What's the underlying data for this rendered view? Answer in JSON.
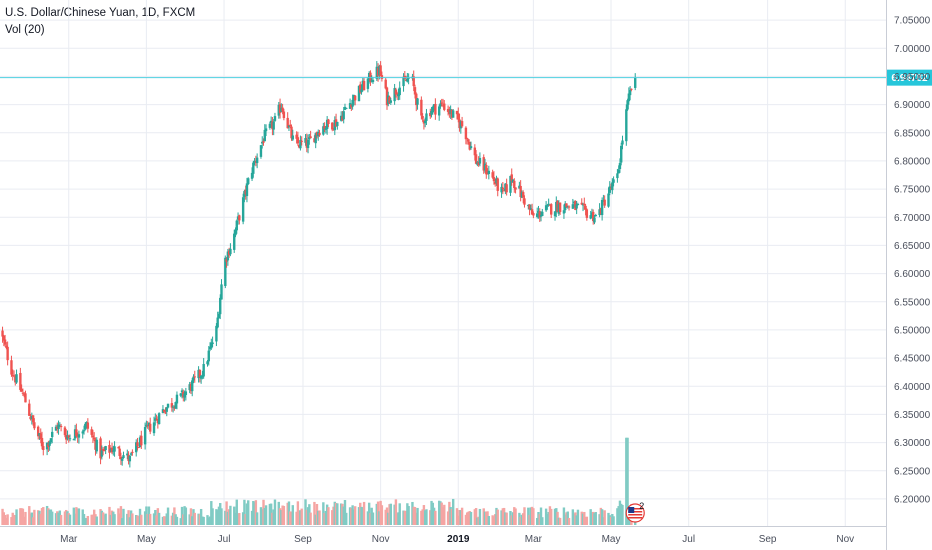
{
  "header": {
    "title": "U.S. Dollar/Chinese Yuan, 1D, FXCM",
    "volume_label": "Vol (20)"
  },
  "colors": {
    "up": "#26a69a",
    "down": "#ef5350",
    "vol_up": "#80cbc4",
    "vol_down": "#f5a5a3",
    "grid": "#e9ecf2",
    "price_line": "#4dd0e1",
    "price_tag": "#26c6da"
  },
  "chart_data": {
    "type": "candlestick",
    "symbol": "USD/CNY",
    "interval": "1D",
    "source": "FXCM",
    "ylim": [
      6.175,
      7.075
    ],
    "y_ticks": [
      "7.05000",
      "7.00000",
      "6.95000",
      "6.90000",
      "6.85000",
      "6.80000",
      "6.75000",
      "6.70000",
      "6.65000",
      "6.60000",
      "6.55000",
      "6.50000",
      "6.45000",
      "6.40000",
      "6.35000",
      "6.30000",
      "6.25000",
      "6.20000"
    ],
    "x_ticks": [
      {
        "label": "Mar",
        "date": "2018-03-01",
        "bold": false
      },
      {
        "label": "May",
        "date": "2018-05-01",
        "bold": false
      },
      {
        "label": "Jul",
        "date": "2018-07-01",
        "bold": false
      },
      {
        "label": "Sep",
        "date": "2018-09-01",
        "bold": false
      },
      {
        "label": "Nov",
        "date": "2018-11-01",
        "bold": false
      },
      {
        "label": "2019",
        "date": "2019-01-01",
        "bold": true
      },
      {
        "label": "Mar",
        "date": "2019-03-01",
        "bold": false
      },
      {
        "label": "May",
        "date": "2019-05-01",
        "bold": false
      },
      {
        "label": "Jul",
        "date": "2019-07-01",
        "bold": false
      },
      {
        "label": "Sep",
        "date": "2019-09-01",
        "bold": false
      },
      {
        "label": "Nov",
        "date": "2019-11-01",
        "bold": false
      }
    ],
    "x_range": [
      "2018-01-06",
      "2019-12-03"
    ],
    "last_price": "6.94782",
    "last_price_value": 6.94782,
    "price_path": [
      [
        "2018-01-06",
        6.5
      ],
      [
        "2018-01-15",
        6.43
      ],
      [
        "2018-01-25",
        6.38
      ],
      [
        "2018-02-03",
        6.32
      ],
      [
        "2018-02-10",
        6.29
      ],
      [
        "2018-02-20",
        6.33
      ],
      [
        "2018-03-01",
        6.31
      ],
      [
        "2018-03-15",
        6.33
      ],
      [
        "2018-03-26",
        6.28
      ],
      [
        "2018-04-05",
        6.29
      ],
      [
        "2018-04-18",
        6.27
      ],
      [
        "2018-05-01",
        6.32
      ],
      [
        "2018-05-15",
        6.36
      ],
      [
        "2018-05-28",
        6.38
      ],
      [
        "2018-06-05",
        6.4
      ],
      [
        "2018-06-15",
        6.43
      ],
      [
        "2018-06-25",
        6.5
      ],
      [
        "2018-07-01",
        6.62
      ],
      [
        "2018-07-08",
        6.66
      ],
      [
        "2018-07-15",
        6.72
      ],
      [
        "2018-07-22",
        6.78
      ],
      [
        "2018-08-01",
        6.84
      ],
      [
        "2018-08-10",
        6.87
      ],
      [
        "2018-08-15",
        6.9
      ],
      [
        "2018-08-25",
        6.83
      ],
      [
        "2018-09-05",
        6.83
      ],
      [
        "2018-09-15",
        6.86
      ],
      [
        "2018-09-28",
        6.87
      ],
      [
        "2018-10-10",
        6.91
      ],
      [
        "2018-10-25",
        6.95
      ],
      [
        "2018-10-31",
        6.96
      ],
      [
        "2018-11-06",
        6.91
      ],
      [
        "2018-11-15",
        6.93
      ],
      [
        "2018-11-25",
        6.95
      ],
      [
        "2018-12-03",
        6.87
      ],
      [
        "2018-12-10",
        6.89
      ],
      [
        "2018-12-20",
        6.9
      ],
      [
        "2018-12-28",
        6.88
      ],
      [
        "2019-01-05",
        6.86
      ],
      [
        "2019-01-15",
        6.8
      ],
      [
        "2019-01-25",
        6.78
      ],
      [
        "2019-02-05",
        6.74
      ],
      [
        "2019-02-12",
        6.77
      ],
      [
        "2019-02-22",
        6.73
      ],
      [
        "2019-03-01",
        6.7
      ],
      [
        "2019-03-08",
        6.71
      ],
      [
        "2019-03-20",
        6.72
      ],
      [
        "2019-04-01",
        6.72
      ],
      [
        "2019-04-10",
        6.71
      ],
      [
        "2019-04-20",
        6.7
      ],
      [
        "2019-04-28",
        6.74
      ],
      [
        "2019-05-06",
        6.77
      ],
      [
        "2019-05-10",
        6.84
      ],
      [
        "2019-05-14",
        6.9
      ],
      [
        "2019-05-17",
        6.93
      ],
      [
        "2019-05-20",
        6.94782
      ]
    ],
    "volume_ylim": [
      0,
      330
    ],
    "volume_peak_date": "2019-05-13",
    "event_flag": {
      "date": "2019-05-20",
      "label": "2"
    }
  }
}
